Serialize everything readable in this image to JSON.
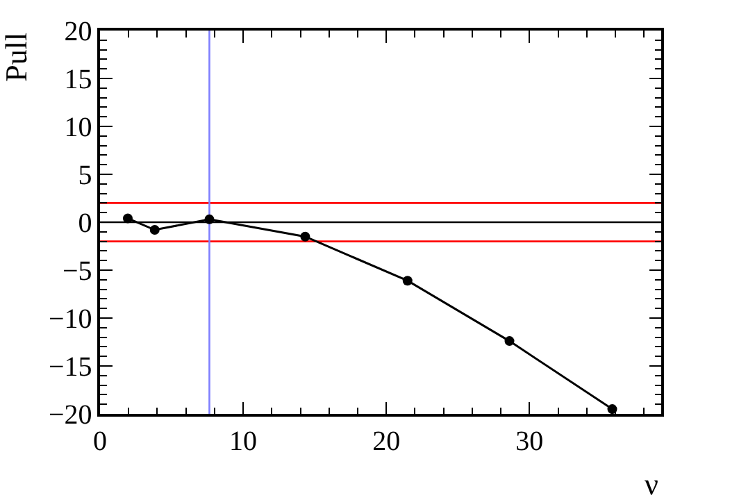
{
  "chart_data": {
    "type": "line",
    "xlabel": "ν",
    "ylabel": "Pull",
    "x": [
      1.94,
      3.82,
      7.64,
      14.33,
      21.48,
      28.6,
      35.78
    ],
    "series": [
      {
        "color": "#000000",
        "values": [
          0.4,
          -0.8,
          0.3,
          -1.5,
          -6.1,
          -12.4,
          -19.5
        ]
      }
    ],
    "marker": "circle",
    "line_style": "solid",
    "xlim": [
      0,
      39.2
    ],
    "xticks": [
      0,
      10,
      20,
      30
    ],
    "ylim": [
      -20,
      20
    ],
    "yticks": [
      {
        "value": -20,
        "label": "−20"
      },
      {
        "value": -15,
        "label": "−15"
      },
      {
        "value": -10,
        "label": "−10"
      },
      {
        "value": -5,
        "label": "−5"
      },
      0,
      5,
      10,
      15,
      20
    ],
    "ref_lines": [
      {
        "axis": "y",
        "value": 0,
        "color": "#000000"
      },
      {
        "axis": "y",
        "value": 2,
        "color": "#ff0000"
      },
      {
        "axis": "y",
        "value": -2,
        "color": "#ff0000"
      },
      {
        "axis": "x",
        "value": 7.64,
        "color": "#7f7fff"
      }
    ]
  }
}
